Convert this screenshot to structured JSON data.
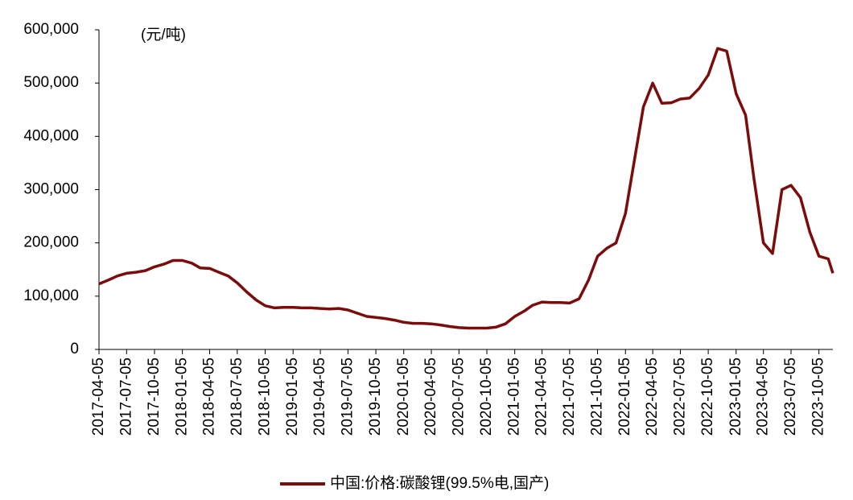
{
  "chart_data": {
    "type": "line",
    "annotation": "(元/吨)",
    "x": [
      "2017-04-05",
      "2017-05-05",
      "2017-06-05",
      "2017-07-05",
      "2017-08-05",
      "2017-09-05",
      "2017-10-05",
      "2017-11-05",
      "2017-12-05",
      "2018-01-05",
      "2018-02-05",
      "2018-03-05",
      "2018-04-05",
      "2018-05-05",
      "2018-06-05",
      "2018-07-05",
      "2018-08-05",
      "2018-09-05",
      "2018-10-05",
      "2018-11-05",
      "2018-12-05",
      "2019-01-05",
      "2019-02-05",
      "2019-03-05",
      "2019-04-05",
      "2019-05-05",
      "2019-06-05",
      "2019-07-05",
      "2019-08-05",
      "2019-09-05",
      "2019-10-05",
      "2019-11-05",
      "2019-12-05",
      "2020-01-05",
      "2020-02-05",
      "2020-03-05",
      "2020-04-05",
      "2020-05-05",
      "2020-06-05",
      "2020-07-05",
      "2020-08-05",
      "2020-09-05",
      "2020-10-05",
      "2020-11-05",
      "2020-12-05",
      "2021-01-05",
      "2021-02-05",
      "2021-03-05",
      "2021-04-05",
      "2021-05-05",
      "2021-06-05",
      "2021-07-05",
      "2021-08-05",
      "2021-09-05",
      "2021-10-05",
      "2021-11-05",
      "2021-12-05",
      "2022-01-05",
      "2022-02-05",
      "2022-03-05",
      "2022-04-05",
      "2022-05-05",
      "2022-06-05",
      "2022-07-05",
      "2022-08-05",
      "2022-09-05",
      "2022-10-05",
      "2022-11-05",
      "2022-12-05",
      "2023-01-05",
      "2023-02-05",
      "2023-03-05",
      "2023-04-05",
      "2023-05-05",
      "2023-06-05",
      "2023-07-05",
      "2023-08-05",
      "2023-09-05",
      "2023-10-05",
      "2023-11-05",
      "2023-11-20"
    ],
    "series": [
      {
        "name": "中国:价格:碳酸锂(99.5%电,国产)",
        "color": "#7b0c0c",
        "values": [
          123000,
          130000,
          138000,
          143000,
          145000,
          148000,
          155000,
          160000,
          167000,
          167000,
          162000,
          153000,
          152000,
          145000,
          138000,
          125000,
          108000,
          93000,
          82000,
          78000,
          79000,
          79000,
          78000,
          78000,
          77000,
          76000,
          77000,
          74000,
          68000,
          62000,
          60000,
          58000,
          55000,
          51000,
          49000,
          49000,
          48000,
          46000,
          43000,
          41000,
          40000,
          40000,
          40000,
          42000,
          48000,
          62000,
          72000,
          83000,
          89000,
          88000,
          88000,
          87000,
          95000,
          130000,
          175000,
          190000,
          200000,
          255000,
          360000,
          455000,
          500000,
          462000,
          463000,
          470000,
          472000,
          490000,
          515000,
          565000,
          560000,
          480000,
          440000,
          320000,
          200000,
          180000,
          300000,
          308000,
          285000,
          220000,
          175000,
          170000,
          143000
        ]
      }
    ],
    "xlim": [
      "2017-04-05",
      "2023-11-20"
    ],
    "xticks": [
      "2017-04-05",
      "2017-07-05",
      "2017-10-05",
      "2018-01-05",
      "2018-04-05",
      "2018-07-05",
      "2018-10-05",
      "2019-01-05",
      "2019-04-05",
      "2019-07-05",
      "2019-10-05",
      "2020-01-05",
      "2020-04-05",
      "2020-07-05",
      "2020-10-05",
      "2021-01-05",
      "2021-04-05",
      "2021-07-05",
      "2021-10-05",
      "2022-01-05",
      "2022-04-05",
      "2022-07-05",
      "2022-10-05",
      "2023-01-05",
      "2023-04-05",
      "2023-07-05",
      "2023-10-05"
    ],
    "ylim": [
      0,
      600000
    ],
    "yticks": [
      0,
      {
        "value": 100000,
        "label": "100,000"
      },
      {
        "value": 200000,
        "label": "200,000"
      },
      {
        "value": 300000,
        "label": "300,000"
      },
      {
        "value": 400000,
        "label": "400,000"
      },
      {
        "value": 500000,
        "label": "500,000"
      },
      {
        "value": 600000,
        "label": "600,000"
      }
    ],
    "legend": "bottom"
  }
}
